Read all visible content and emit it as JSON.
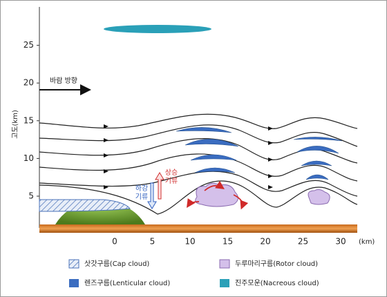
{
  "axes": {
    "y_label": "고도(km)",
    "y_ticks": [
      "5",
      "10",
      "15",
      "20",
      "25"
    ],
    "x_ticks": [
      "0",
      "5",
      "10",
      "15",
      "20",
      "25",
      "30"
    ],
    "x_unit": "(km)"
  },
  "annotations": {
    "wind": "바람 방향",
    "updraft": [
      "상승",
      "기류"
    ],
    "downdraft": [
      "하강",
      "기류"
    ]
  },
  "legend": [
    "삿갓구름(Cap cloud)",
    "두루마리구름(Rotor cloud)",
    "렌즈구름(Lenticular cloud)",
    "진주모운(Nacreous cloud)"
  ]
}
